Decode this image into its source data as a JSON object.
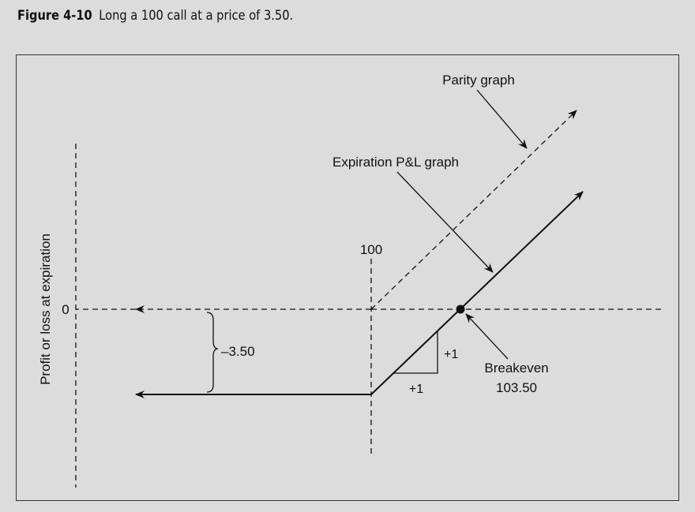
{
  "figure": {
    "number": "Figure 4-10",
    "caption": "Long a 100 call at a price of 3.50."
  },
  "diagram": {
    "y_axis_label": "Profit or loss at expiration",
    "zero_label": "0",
    "strike_label": "100",
    "premium_label": "–3.50",
    "rise_label": "+1",
    "run_label": "+1",
    "parity_label": "Parity graph",
    "expiration_label": "Expiration P&L graph",
    "breakeven_label": "Breakeven",
    "breakeven_value": "103.50"
  },
  "colors": {
    "background": "#dcdcdc",
    "ink": "#111111"
  }
}
